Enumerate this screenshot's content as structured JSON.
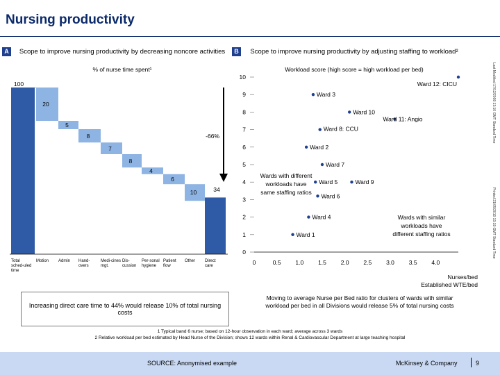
{
  "page": {
    "title": "Nursing productivity",
    "side_notes": [
      "Last Modified 17/12/2009 13:10 GMT Standard Time",
      "Printed 21/05/2010 13:19 GMT Standard Time"
    ]
  },
  "panel_a": {
    "letter": "A",
    "heading": "Scope to improve nursing productivity by decreasing noncore activities",
    "subheading": "% of nurse time spent¹",
    "reduction_label": "-66%",
    "note": "Increasing direct care time to 44% would release 10% of total nursing costs"
  },
  "panel_b": {
    "letter": "B",
    "heading": "Scope to improve nursing productivity by adjusting staffing to workload²",
    "subheading": "Workload score (high score = high workload per bed)",
    "annotation_left": "Wards with different workloads have same staffing ratios",
    "annotation_right": "Wards with similar workloads have different staffing ratios",
    "note": "Moving to average Nurse per Bed ratio for clusters of wards with similar workload per bed in all Divisions would release 5% of total nursing costs"
  },
  "chart_data": [
    {
      "type": "bar",
      "subtype": "waterfall",
      "title": "% of nurse time spent¹",
      "categories": [
        "Total scheduled time",
        "Motion",
        "Admin",
        "Handovers",
        "Medicines mgt.",
        "Discussion",
        "Personal hygiene",
        "Patient flow",
        "Other",
        "Direct care"
      ],
      "category_labels": [
        "Total sched-uled time",
        "Motion",
        "Admin",
        "Hand-overs",
        "Medi-cines mgt.",
        "Dis-cussion",
        "Per-sonal hygiene",
        "Patient flow",
        "Other",
        "Direct care"
      ],
      "values": [
        100,
        20,
        5,
        8,
        7,
        8,
        4,
        6,
        10,
        34
      ],
      "ylim": [
        0,
        100
      ],
      "colors": {
        "total": "#2f5aa6",
        "step": "#8eb4e3",
        "direct": "#2f5aa6"
      }
    },
    {
      "type": "scatter",
      "title": "Workload score (high score = high workload per bed)",
      "xlabel": "Nurses/bed",
      "xlabel_sub": "Established WTE/bed",
      "ylabel": "",
      "xlim": [
        0,
        4.5
      ],
      "ylim": [
        0,
        10
      ],
      "xticks": [
        "0",
        "0.5",
        "1.0",
        "1.5",
        "2.0",
        "2.5",
        "3.0",
        "3.5",
        "4.0"
      ],
      "yticks": [
        "0",
        "1",
        "2",
        "3",
        "4",
        "5",
        "6",
        "7",
        "8",
        "9",
        "10"
      ],
      "points": [
        {
          "label": "Ward 12: CICU",
          "x": 4.5,
          "y": 10
        },
        {
          "label": "Ward 3",
          "x": 1.3,
          "y": 9
        },
        {
          "label": "Ward 10",
          "x": 2.1,
          "y": 8
        },
        {
          "label": "Ward 11: Angio",
          "x": 3.1,
          "y": 7.6
        },
        {
          "label": "Ward 8: CCU",
          "x": 1.45,
          "y": 7
        },
        {
          "label": "Ward 2",
          "x": 1.15,
          "y": 6
        },
        {
          "label": "Ward 7",
          "x": 1.5,
          "y": 5
        },
        {
          "label": "Ward 5",
          "x": 1.35,
          "y": 4
        },
        {
          "label": "Ward 9",
          "x": 2.15,
          "y": 4
        },
        {
          "label": "Ward 6",
          "x": 1.4,
          "y": 3.2
        },
        {
          "label": "Ward 4",
          "x": 1.2,
          "y": 2
        },
        {
          "label": "Ward 1",
          "x": 0.85,
          "y": 1
        }
      ],
      "color": "#1f3f8f"
    }
  ],
  "footnotes": [
    "1 Typical band 6 nurse; based on 12-hour observation in each ward; average across 3 wards",
    "2 Relative workload per bed estimated by Head Nurse of the Division; shows 12 wards within Renal & Cardiovascular Department at large teaching hospital"
  ],
  "footer": {
    "source": "SOURCE: Anonymised example",
    "brand": "McKinsey & Company",
    "page_number": "9"
  }
}
